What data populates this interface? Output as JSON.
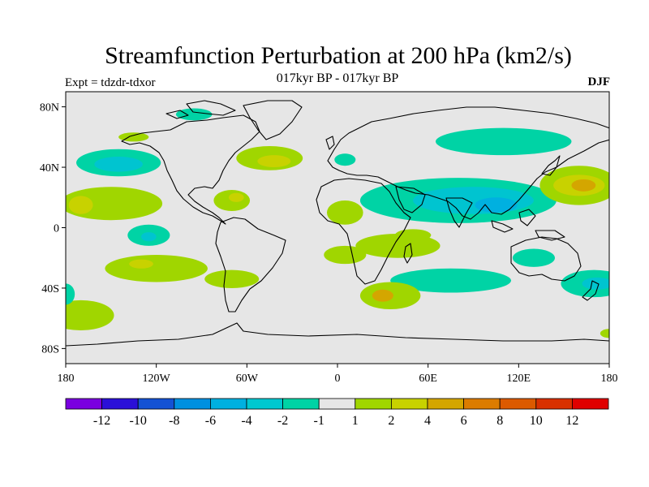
{
  "title": "Streamfunction Perturbation at 200 hPa (km2/s)",
  "subtitle": "017kyr BP - 017kyr BP",
  "expt_label": "Expt = tdzdr-tdxor",
  "season": "DJF",
  "map": {
    "projection": "cylindrical-equidistant",
    "lon_range": [
      -180,
      180
    ],
    "lat_range": [
      -90,
      90
    ],
    "lat_ticks": [
      {
        "value": 80,
        "label": "80N"
      },
      {
        "value": 40,
        "label": "40N"
      },
      {
        "value": 0,
        "label": "0"
      },
      {
        "value": -40,
        "label": "40S"
      },
      {
        "value": -80,
        "label": "80S"
      }
    ],
    "lon_ticks": [
      {
        "value": -180,
        "label": "180"
      },
      {
        "value": -120,
        "label": "120W"
      },
      {
        "value": -60,
        "label": "60W"
      },
      {
        "value": 0,
        "label": "0"
      },
      {
        "value": 60,
        "label": "60E"
      },
      {
        "value": 120,
        "label": "120E"
      },
      {
        "value": 180,
        "label": "180"
      }
    ],
    "background_color": "#e6e6e6",
    "anomalies": [
      {
        "name": "n-pacific-neg",
        "lon": -145,
        "lat": 43,
        "rx": 28,
        "ry": 9,
        "color": "#00d3a5"
      },
      {
        "name": "n-pacific-neg-core",
        "lon": -145,
        "lat": 42,
        "rx": 16,
        "ry": 5,
        "color": "#00c4d0"
      },
      {
        "name": "arctic-canada-neg",
        "lon": -95,
        "lat": 75,
        "rx": 12,
        "ry": 4,
        "color": "#00d3a5"
      },
      {
        "name": "ne-pacific-pos",
        "lon": -135,
        "lat": 60,
        "rx": 10,
        "ry": 3,
        "color": "#a0d600"
      },
      {
        "name": "nw-atlantic-pos",
        "lon": -45,
        "lat": 46,
        "rx": 22,
        "ry": 8,
        "color": "#a0d600"
      },
      {
        "name": "nw-atlantic-pos-core",
        "lon": -42,
        "lat": 44,
        "rx": 11,
        "ry": 4,
        "color": "#c8d200"
      },
      {
        "name": "subtrop-pacific-pos",
        "lon": -150,
        "lat": 16,
        "rx": 34,
        "ry": 11,
        "color": "#a0d600"
      },
      {
        "name": "subtrop-pacific-pos-core",
        "lon": -170,
        "lat": 15,
        "rx": 8,
        "ry": 6,
        "color": "#c8d200"
      },
      {
        "name": "caribbean-pos",
        "lon": -70,
        "lat": 18,
        "rx": 12,
        "ry": 7,
        "color": "#a0d600"
      },
      {
        "name": "caribbean-pos-core",
        "lon": -67,
        "lat": 20,
        "rx": 5,
        "ry": 3,
        "color": "#c8d200"
      },
      {
        "name": "trop-pacific-neg",
        "lon": -125,
        "lat": -5,
        "rx": 14,
        "ry": 7,
        "color": "#00d3a5"
      },
      {
        "name": "trop-pacific-neg-core",
        "lon": -125,
        "lat": -6,
        "rx": 5,
        "ry": 3,
        "color": "#00c4d0"
      },
      {
        "name": "s-pacific-pos",
        "lon": -120,
        "lat": -27,
        "rx": 34,
        "ry": 9,
        "color": "#a0d600"
      },
      {
        "name": "s-pacific-pos-core",
        "lon": -130,
        "lat": -24,
        "rx": 8,
        "ry": 3,
        "color": "#c8d200"
      },
      {
        "name": "s-pacific-pos-east",
        "lon": -70,
        "lat": -34,
        "rx": 18,
        "ry": 6,
        "color": "#a0d600"
      },
      {
        "name": "s-midlat-pos",
        "lon": -170,
        "lat": -58,
        "rx": 22,
        "ry": 10,
        "color": "#a0d600"
      },
      {
        "name": "s-pacific-neg",
        "lon": -180,
        "lat": -44,
        "rx": 6,
        "ry": 7,
        "color": "#00d3a5"
      },
      {
        "name": "n-africa-pos",
        "lon": 5,
        "lat": 10,
        "rx": 12,
        "ry": 8,
        "color": "#a0d600"
      },
      {
        "name": "s-atlantic-pos",
        "lon": 40,
        "lat": -12,
        "rx": 28,
        "ry": 8,
        "color": "#a0d600"
      },
      {
        "name": "s-atlantic-pos-west",
        "lon": 5,
        "lat": -18,
        "rx": 14,
        "ry": 6,
        "color": "#a0d600"
      },
      {
        "name": "s-indian-neg",
        "lon": 75,
        "lat": -35,
        "rx": 40,
        "ry": 8,
        "color": "#00d3a5"
      },
      {
        "name": "s-africa-pos",
        "lon": 35,
        "lat": -45,
        "rx": 20,
        "ry": 9,
        "color": "#a0d600"
      },
      {
        "name": "s-africa-pos-core",
        "lon": 30,
        "lat": -45,
        "rx": 7,
        "ry": 4,
        "color": "#d4a600"
      },
      {
        "name": "europe-neg",
        "lon": 5,
        "lat": 45,
        "rx": 7,
        "ry": 4,
        "color": "#00d3a5"
      },
      {
        "name": "asia-jet-neg",
        "lon": 80,
        "lat": 18,
        "rx": 65,
        "ry": 15,
        "color": "#00d3a5"
      },
      {
        "name": "asia-jet-neg-core",
        "lon": 90,
        "lat": 18,
        "rx": 40,
        "ry": 9,
        "color": "#00c4d0"
      },
      {
        "name": "asia-jet-neg-core2",
        "lon": 105,
        "lat": 15,
        "rx": 14,
        "ry": 5,
        "color": "#00b0e0"
      },
      {
        "name": "n-asia-neg",
        "lon": 110,
        "lat": 57,
        "rx": 45,
        "ry": 9,
        "color": "#00d3a5"
      },
      {
        "name": "nw-pacific-pos",
        "lon": 160,
        "lat": 28,
        "rx": 26,
        "ry": 13,
        "color": "#a0d600"
      },
      {
        "name": "nw-pacific-pos-core",
        "lon": 160,
        "lat": 28,
        "rx": 17,
        "ry": 7,
        "color": "#c8d200"
      },
      {
        "name": "nw-pacific-pos-core2",
        "lon": 163,
        "lat": 28,
        "rx": 8,
        "ry": 4,
        "color": "#d4a600"
      },
      {
        "name": "australia-neg",
        "lon": 130,
        "lat": -20,
        "rx": 14,
        "ry": 6,
        "color": "#00d3a5"
      },
      {
        "name": "sw-pacific-neg",
        "lon": 170,
        "lat": -37,
        "rx": 22,
        "ry": 9,
        "color": "#00d3a5"
      },
      {
        "name": "sw-pacific-neg-core",
        "lon": 172,
        "lat": -37,
        "rx": 10,
        "ry": 4,
        "color": "#00c4d0"
      },
      {
        "name": "e-pacific-small-pos",
        "lon": 180,
        "lat": -70,
        "rx": 6,
        "ry": 3,
        "color": "#a0d600"
      },
      {
        "name": "indian-ocean-pos",
        "lon": 50,
        "lat": -5,
        "rx": 12,
        "ry": 4,
        "color": "#a0d600"
      }
    ]
  },
  "colorbar": {
    "colors": [
      "#7a00e0",
      "#2b10d8",
      "#1452d4",
      "#0090e0",
      "#00b0e0",
      "#00c8d0",
      "#00d3a5",
      "#e6e6e6",
      "#a0d600",
      "#c8d200",
      "#d4a600",
      "#dc7c00",
      "#dc5a00",
      "#d83000",
      "#e00000"
    ],
    "tick_labels": [
      "-12",
      "-10",
      "-8",
      "-6",
      "-4",
      "-2",
      "-1",
      "1",
      "2",
      "4",
      "6",
      "8",
      "10",
      "12"
    ]
  }
}
